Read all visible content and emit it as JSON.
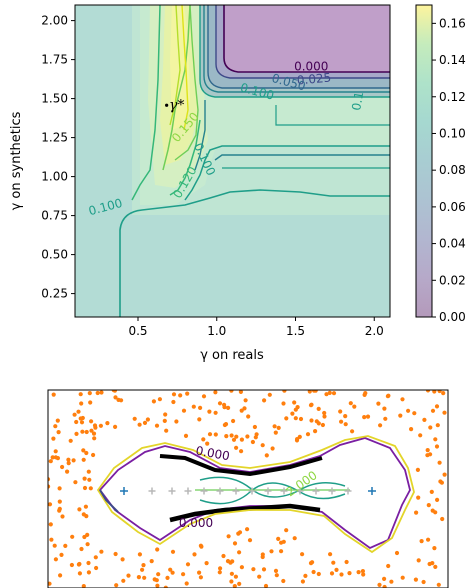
{
  "chart_data": [
    {
      "type": "heatmap",
      "subtype": "filled-contour",
      "xlabel": "γ on reals",
      "ylabel": "γ on synthetics",
      "xlim": [
        0.1,
        2.1
      ],
      "ylim": [
        0.1,
        2.1
      ],
      "xticks": [
        0.5,
        1.0,
        1.5,
        2.0
      ],
      "xtick_labels": [
        "0.5",
        "1.0",
        "1.5",
        "2.0"
      ],
      "yticks": [
        0.25,
        0.5,
        0.75,
        1.0,
        1.25,
        1.5,
        1.75,
        2.0
      ],
      "ytick_labels": [
        "0.25",
        "0.50",
        "0.75",
        "1.00",
        "1.25",
        "1.50",
        "1.75",
        "2.00"
      ],
      "colorbar": {
        "ticks": [
          0.0,
          0.02,
          0.04,
          0.06,
          0.08,
          0.1,
          0.12,
          0.14,
          0.16
        ],
        "tick_labels": [
          "0.00",
          "0.02",
          "0.04",
          "0.06",
          "0.08",
          "0.10",
          "0.12",
          "0.14",
          "0.16"
        ],
        "range": [
          0.0,
          0.17
        ]
      },
      "contour_labels": [
        {
          "text": "0.000",
          "x": 1.6,
          "y": 1.68,
          "level": 0.0
        },
        {
          "text": "0.025",
          "x": 1.62,
          "y": 1.6,
          "level": 0.025
        },
        {
          "text": "0.050",
          "x": 1.45,
          "y": 1.58,
          "level": 0.05
        },
        {
          "text": "0.100",
          "x": 1.25,
          "y": 1.52,
          "level": 0.1
        },
        {
          "text": "0.150",
          "x": 0.82,
          "y": 1.3,
          "level": 0.15
        },
        {
          "text": "0.100",
          "x": 0.9,
          "y": 1.1,
          "level": 0.1
        },
        {
          "text": "0.120",
          "x": 0.82,
          "y": 0.95,
          "level": 0.12
        },
        {
          "text": "0.100",
          "x": 0.3,
          "y": 0.78,
          "level": 0.1
        },
        {
          "text": "0.1",
          "x": 1.92,
          "y": 1.48,
          "level": 0.1
        }
      ],
      "optimum": {
        "label": "γ*",
        "x": 0.72,
        "y": 1.47
      }
    },
    {
      "type": "scatter",
      "subtype": "decision-boundary",
      "contour_labels": [
        {
          "text": "0.000",
          "x": -0.45,
          "y": 0.42
        },
        {
          "text": "0.000",
          "x": -0.65,
          "y": -0.45
        },
        {
          "text": "2.000",
          "x": 0.7,
          "y": 0.05
        }
      ],
      "crosses_blue": [
        {
          "x": -1.55,
          "y": 0.0
        },
        {
          "x": 1.55,
          "y": 0.0
        }
      ],
      "crosses_gray_x": [
        -1.2,
        -0.95,
        -0.75,
        -0.55,
        -0.35,
        -0.15,
        0.05,
        0.25,
        0.45,
        0.65,
        0.85,
        1.05,
        1.25
      ]
    }
  ]
}
